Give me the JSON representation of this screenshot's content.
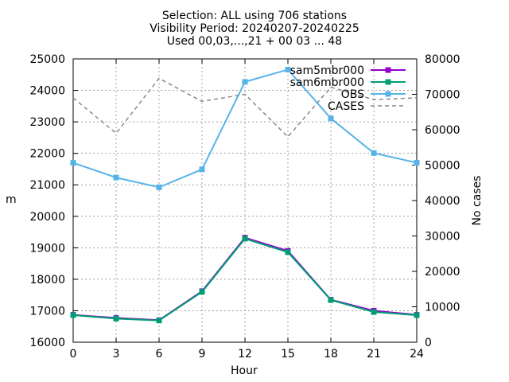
{
  "title_lines": [
    "Selection: ALL using   706 stations",
    "Visibility   Period: 20240207-20240225",
    "Used 00,03,...,21 + 00 03 ... 48"
  ],
  "chart_data": {
    "type": "line",
    "xlabel": "Hour",
    "ylabel": "m",
    "y2label": "No cases",
    "x": [
      0,
      3,
      6,
      9,
      12,
      15,
      18,
      21,
      24
    ],
    "xticks": [
      0,
      3,
      6,
      9,
      12,
      15,
      18,
      21,
      24
    ],
    "xlim": [
      0,
      24
    ],
    "ylim": [
      16000,
      25000
    ],
    "yticks": [
      16000,
      17000,
      18000,
      19000,
      20000,
      21000,
      22000,
      23000,
      24000,
      25000
    ],
    "y2lim": [
      0,
      80000
    ],
    "y2ticks": [
      0,
      10000,
      20000,
      30000,
      40000,
      50000,
      60000,
      70000,
      80000
    ],
    "grid": true,
    "legend_position": "top-right",
    "series": [
      {
        "name": "sam5mbr000",
        "axis": "y",
        "color": "#9400d3",
        "marker": "square",
        "values": [
          16870,
          16770,
          16700,
          17620,
          19320,
          18900,
          17350,
          17000,
          16870
        ]
      },
      {
        "name": "sam6mbr000",
        "axis": "y",
        "color": "#009e73",
        "marker": "square",
        "values": [
          16860,
          16750,
          16690,
          17600,
          19290,
          18860,
          17340,
          16960,
          16860
        ]
      },
      {
        "name": "OBS",
        "axis": "y",
        "color": "#56b4e9",
        "marker": "square",
        "values": [
          21700,
          21230,
          20920,
          21490,
          24270,
          24660,
          23110,
          22010,
          21700
        ]
      },
      {
        "name": "CASES",
        "axis": "y2",
        "color": "#888888",
        "dashed": true,
        "values": [
          69000,
          59000,
          74500,
          68000,
          70000,
          58000,
          72000,
          68500,
          69000
        ]
      }
    ]
  }
}
